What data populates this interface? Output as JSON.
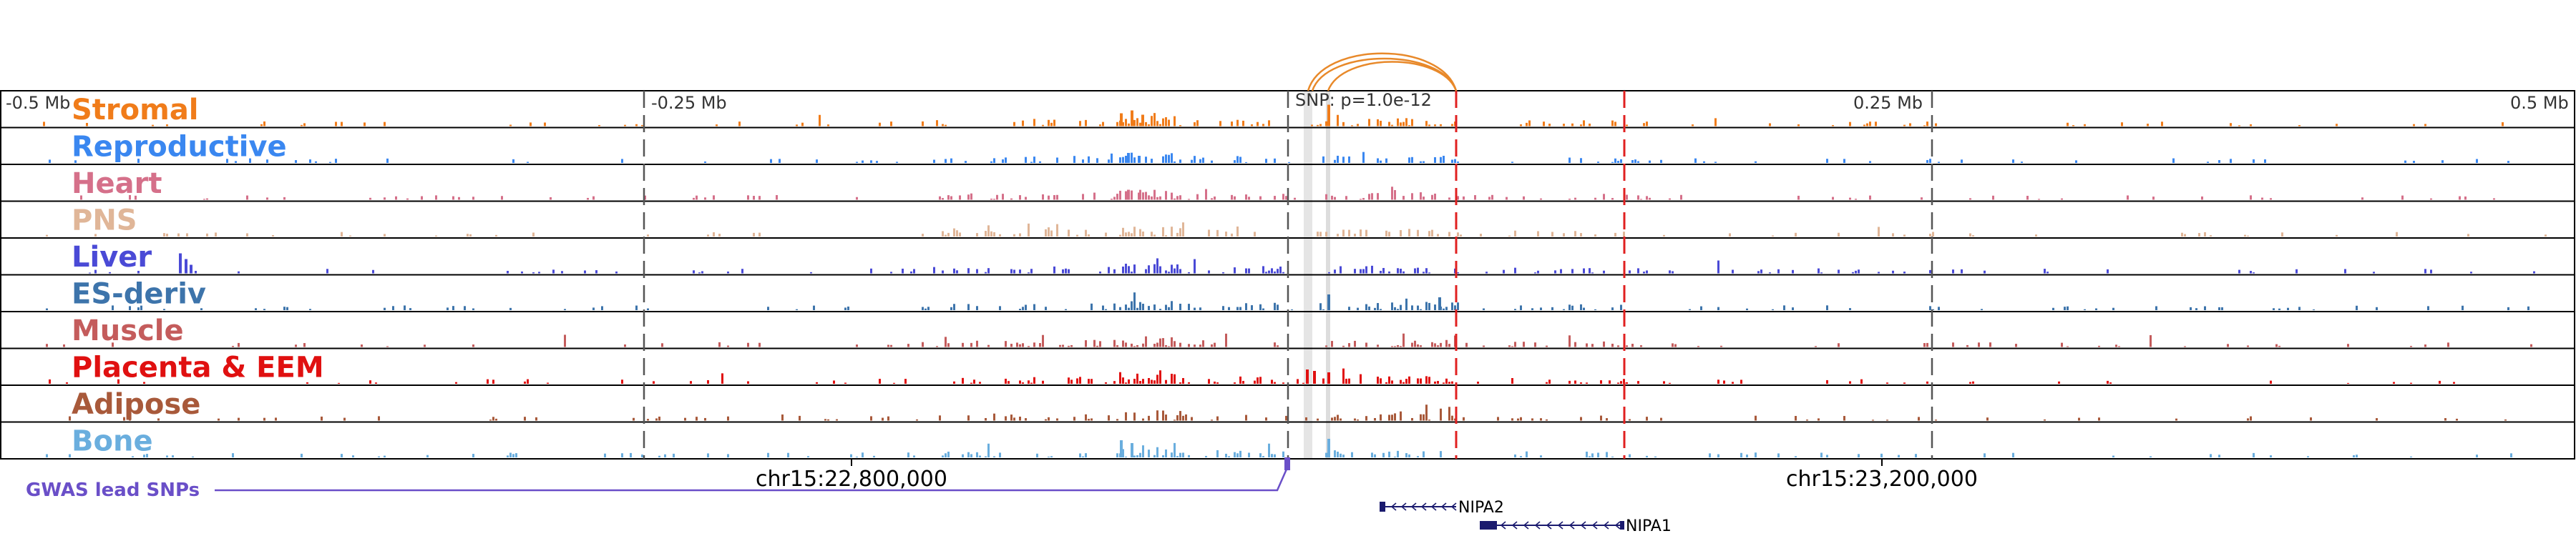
{
  "scale": {
    "tick_labels": [
      "-0.5 Mb",
      "-0.25 Mb",
      "0.25 Mb",
      "0.5 Mb"
    ],
    "snp_annotation": "SNP: p=1.0e-12"
  },
  "tracks": [
    {
      "label": "Stromal",
      "color": "#f07c1a"
    },
    {
      "label": "Reproductive",
      "color": "#3a87f0"
    },
    {
      "label": "Heart",
      "color": "#d5708a"
    },
    {
      "label": "PNS",
      "color": "#e0b698"
    },
    {
      "label": "Liver",
      "color": "#4a4ad6"
    },
    {
      "label": "ES-deriv",
      "color": "#3d74ab"
    },
    {
      "label": "Muscle",
      "color": "#c45c5c"
    },
    {
      "label": "Placenta & EEM",
      "color": "#e01010"
    },
    {
      "label": "Adipose",
      "color": "#a8593a"
    },
    {
      "label": "Bone",
      "color": "#6aaede"
    }
  ],
  "gwas": {
    "label": "GWAS lead SNPs",
    "color": "#6a4fc8"
  },
  "coordinates": [
    "chr15:22,800,000",
    "chr15:23,200,000"
  ],
  "genes": [
    {
      "name": "NIPA2",
      "color": "#1a1a6e"
    },
    {
      "name": "NIPA1",
      "color": "#1a1a6e"
    }
  ],
  "colors": {
    "loop_arc": "#e8892a",
    "snp_highlight": "#cfcfcf",
    "boundary_red": "#e02020",
    "tick_gray": "#555555"
  }
}
